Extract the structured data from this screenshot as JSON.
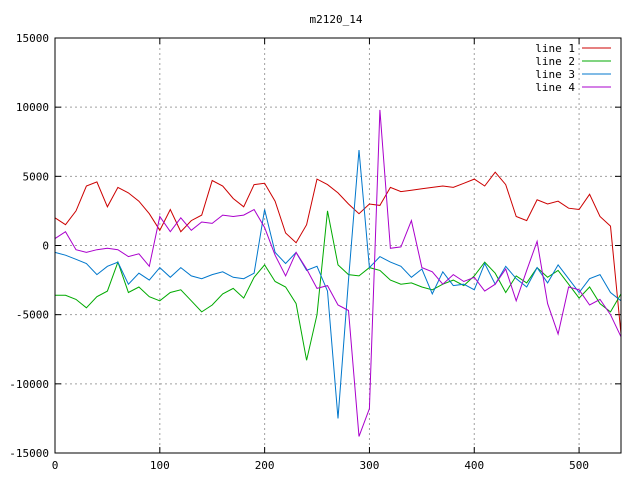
{
  "chart_data": {
    "type": "line",
    "title": "m2120_14",
    "xlabel": "",
    "ylabel": "",
    "xlim": [
      0,
      540
    ],
    "ylim": [
      -15000,
      15000
    ],
    "xticks": [
      0,
      100,
      200,
      300,
      400,
      500
    ],
    "yticks": [
      -15000,
      -10000,
      -5000,
      0,
      5000,
      10000,
      15000
    ],
    "xtick_labels": [
      "0",
      "100",
      "200",
      "300",
      "400",
      "500"
    ],
    "ytick_labels": [
      "-15000",
      "-10000",
      "-5000",
      "0",
      "5000",
      "10000",
      "15000"
    ],
    "grid": true,
    "legend_position": "top-right",
    "series": [
      {
        "name": "line 1",
        "color": "#cc0000",
        "x": [
          0,
          10,
          20,
          30,
          40,
          50,
          60,
          70,
          80,
          90,
          100,
          110,
          120,
          130,
          140,
          150,
          160,
          170,
          180,
          190,
          200,
          210,
          220,
          230,
          240,
          250,
          260,
          270,
          280,
          290,
          300,
          310,
          320,
          330,
          340,
          350,
          360,
          370,
          380,
          390,
          400,
          410,
          420,
          430,
          440,
          450,
          460,
          470,
          480,
          490,
          500,
          510,
          520,
          530,
          540
        ],
        "y": [
          2000,
          1500,
          2500,
          4300,
          4600,
          2800,
          4200,
          3800,
          3200,
          2300,
          1100,
          2600,
          1000,
          1800,
          2200,
          4700,
          4300,
          3400,
          2800,
          4400,
          4500,
          3200,
          900,
          200,
          1500,
          4800,
          4400,
          3800,
          3000,
          2300,
          3000,
          2900,
          4200,
          3900,
          4000,
          4100,
          4200,
          4300,
          4200,
          4500,
          4800,
          4300,
          5300,
          4400,
          2100,
          1800,
          3300,
          3000,
          3200,
          2700,
          2600,
          3700,
          2100,
          1400,
          -6400
        ]
      },
      {
        "name": "line 2",
        "color": "#00aa00",
        "x": [
          0,
          10,
          20,
          30,
          40,
          50,
          60,
          70,
          80,
          90,
          100,
          110,
          120,
          130,
          140,
          150,
          160,
          170,
          180,
          190,
          200,
          210,
          220,
          230,
          240,
          250,
          260,
          270,
          280,
          290,
          300,
          310,
          320,
          330,
          340,
          350,
          360,
          370,
          380,
          390,
          400,
          410,
          420,
          430,
          440,
          450,
          460,
          470,
          480,
          490,
          500,
          510,
          520,
          530,
          540
        ],
        "y": [
          -3600,
          -3600,
          -3900,
          -4500,
          -3700,
          -3300,
          -1200,
          -3400,
          -3000,
          -3700,
          -4000,
          -3400,
          -3200,
          -4000,
          -4800,
          -4300,
          -3500,
          -3100,
          -3800,
          -2300,
          -1400,
          -2600,
          -3000,
          -4200,
          -8300,
          -5000,
          2500,
          -1400,
          -2100,
          -2200,
          -1600,
          -1800,
          -2500,
          -2800,
          -2700,
          -3000,
          -3200,
          -2800,
          -2500,
          -2900,
          -2200,
          -1200,
          -2000,
          -3400,
          -2200,
          -2700,
          -1600,
          -2300,
          -1800,
          -2800,
          -3800,
          -3000,
          -4200,
          -4800,
          -3500
        ]
      },
      {
        "name": "line 3",
        "color": "#0077cc",
        "x": [
          0,
          10,
          20,
          30,
          40,
          50,
          60,
          70,
          80,
          90,
          100,
          110,
          120,
          130,
          140,
          150,
          160,
          170,
          180,
          190,
          200,
          210,
          220,
          230,
          240,
          250,
          260,
          270,
          280,
          290,
          300,
          310,
          320,
          330,
          340,
          350,
          360,
          370,
          380,
          390,
          400,
          410,
          420,
          430,
          440,
          450,
          460,
          470,
          480,
          490,
          500,
          510,
          520,
          530,
          540
        ],
        "y": [
          -500,
          -700,
          -1000,
          -1300,
          -2100,
          -1500,
          -1200,
          -2800,
          -2000,
          -2500,
          -1600,
          -2300,
          -1600,
          -2200,
          -2400,
          -2100,
          -1900,
          -2300,
          -2400,
          -2000,
          2600,
          -500,
          -1300,
          -500,
          -1800,
          -1500,
          -3300,
          -12500,
          -2500,
          6900,
          -1600,
          -800,
          -1200,
          -1500,
          -2300,
          -1700,
          -3500,
          -1900,
          -2900,
          -2800,
          -3200,
          -1300,
          -2800,
          -1500,
          -2400,
          -3000,
          -1600,
          -2700,
          -1400,
          -2400,
          -3400,
          -2400,
          -2100,
          -3400,
          -4000
        ]
      },
      {
        "name": "line 4",
        "color": "#aa00cc",
        "x": [
          0,
          10,
          20,
          30,
          40,
          50,
          60,
          70,
          80,
          90,
          100,
          110,
          120,
          130,
          140,
          150,
          160,
          170,
          180,
          190,
          200,
          210,
          220,
          230,
          240,
          250,
          260,
          270,
          280,
          290,
          300,
          310,
          320,
          330,
          340,
          350,
          360,
          370,
          380,
          390,
          400,
          410,
          420,
          430,
          440,
          450,
          460,
          470,
          480,
          490,
          500,
          510,
          520,
          530,
          540
        ],
        "y": [
          500,
          1000,
          -300,
          -500,
          -300,
          -200,
          -300,
          -800,
          -600,
          -1500,
          2100,
          1000,
          2000,
          1100,
          1700,
          1600,
          2200,
          2100,
          2200,
          2600,
          1300,
          -700,
          -2200,
          -500,
          -1700,
          -3100,
          -2900,
          -4300,
          -4700,
          -13800,
          -11800,
          9800,
          -200,
          -100,
          1800,
          -1600,
          -1900,
          -2800,
          -2100,
          -2600,
          -2300,
          -3300,
          -2800,
          -1700,
          -4000,
          -1800,
          300,
          -4200,
          -6400,
          -3000,
          -3200,
          -4300,
          -3900,
          -5000,
          -6600
        ]
      }
    ]
  }
}
